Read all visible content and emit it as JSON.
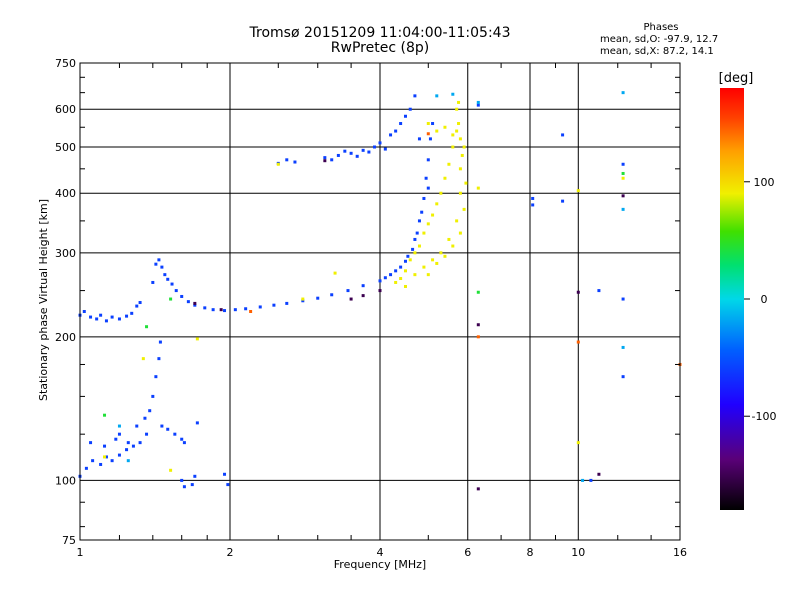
{
  "header": {
    "title": "Tromsø 20151209 11:04:00-11:05:43",
    "subtitle": "RwPretec (8p)"
  },
  "phase_stats": {
    "heading": "Phases",
    "o_line": "mean, sd,O: -97.9, 12.7",
    "x_line": "mean, sd,X: 87.2, 14.1"
  },
  "colorbar": {
    "label": "[deg]",
    "range": [
      -180,
      180
    ],
    "ticks": [
      {
        "value": 100,
        "label": "100"
      },
      {
        "value": 0,
        "label": "0"
      },
      {
        "value": -100,
        "label": "-100"
      }
    ]
  },
  "chart_data": {
    "type": "scatter",
    "xlabel": "Frequency [MHz]",
    "ylabel": "Stationary phase Virtual Height [km]",
    "xscale": "log",
    "yscale": "log",
    "xlim": [
      1,
      16
    ],
    "ylim": [
      75,
      750
    ],
    "xticks": [
      {
        "v": 1,
        "label": "1"
      },
      {
        "v": 2,
        "label": "2"
      },
      {
        "v": 4,
        "label": "4"
      },
      {
        "v": 6,
        "label": "6"
      },
      {
        "v": 8,
        "label": "8"
      },
      {
        "v": 10,
        "label": "10"
      },
      {
        "v": 16,
        "label": "16"
      }
    ],
    "yticks": [
      {
        "v": 75,
        "label": "75"
      },
      {
        "v": 100,
        "label": "100"
      },
      {
        "v": 200,
        "label": "200"
      },
      {
        "v": 300,
        "label": "300"
      },
      {
        "v": 400,
        "label": "400"
      },
      {
        "v": 500,
        "label": "500"
      },
      {
        "v": 600,
        "label": "600"
      },
      {
        "v": 750,
        "label": "750"
      }
    ],
    "grid": true,
    "series": [
      {
        "color_phase": -100,
        "points": [
          [
            1.0,
            222
          ],
          [
            1.02,
            226
          ],
          [
            1.05,
            220
          ],
          [
            1.08,
            218
          ],
          [
            1.1,
            222
          ],
          [
            1.13,
            216
          ],
          [
            1.16,
            220
          ],
          [
            1.2,
            218
          ],
          [
            1.24,
            221
          ],
          [
            1.27,
            224
          ],
          [
            1.3,
            232
          ],
          [
            1.32,
            236
          ],
          [
            1.4,
            260
          ],
          [
            1.42,
            284
          ],
          [
            1.44,
            290
          ],
          [
            1.46,
            280
          ],
          [
            1.48,
            270
          ],
          [
            1.5,
            264
          ],
          [
            1.53,
            258
          ],
          [
            1.56,
            250
          ],
          [
            1.6,
            243
          ],
          [
            1.65,
            237
          ],
          [
            1.7,
            233
          ],
          [
            1.78,
            230
          ],
          [
            1.85,
            228
          ],
          [
            1.95,
            227
          ],
          [
            2.05,
            228
          ],
          [
            2.15,
            229
          ],
          [
            2.3,
            231
          ],
          [
            2.45,
            233
          ],
          [
            2.6,
            235
          ],
          [
            2.8,
            238
          ],
          [
            3.0,
            241
          ],
          [
            3.2,
            245
          ],
          [
            3.45,
            250
          ],
          [
            3.7,
            256
          ],
          [
            4.0,
            262
          ],
          [
            4.2,
            270
          ],
          [
            4.4,
            280
          ],
          [
            4.55,
            295
          ],
          [
            4.7,
            320
          ],
          [
            4.8,
            350
          ],
          [
            4.9,
            390
          ],
          [
            4.95,
            430
          ],
          [
            5.0,
            470
          ],
          [
            5.05,
            520
          ],
          [
            5.1,
            560
          ],
          [
            4.1,
            266
          ],
          [
            4.3,
            275
          ],
          [
            4.5,
            288
          ],
          [
            4.65,
            305
          ],
          [
            4.75,
            330
          ],
          [
            4.85,
            365
          ],
          [
            5.0,
            410
          ],
          [
            2.5,
            462
          ],
          [
            2.6,
            470
          ],
          [
            2.7,
            465
          ],
          [
            3.1,
            475
          ],
          [
            3.2,
            470
          ],
          [
            3.3,
            480
          ],
          [
            3.5,
            485
          ],
          [
            3.7,
            492
          ],
          [
            3.9,
            500
          ],
          [
            4.0,
            510
          ],
          [
            4.2,
            530
          ],
          [
            4.4,
            560
          ],
          [
            4.6,
            600
          ],
          [
            4.7,
            640
          ],
          [
            3.4,
            490
          ],
          [
            3.6,
            478
          ],
          [
            3.8,
            488
          ],
          [
            4.1,
            495
          ],
          [
            4.3,
            540
          ],
          [
            4.5,
            580
          ],
          [
            4.8,
            520
          ],
          [
            1.0,
            102
          ],
          [
            1.03,
            106
          ],
          [
            1.06,
            110
          ],
          [
            1.1,
            108
          ],
          [
            1.13,
            112
          ],
          [
            1.16,
            110
          ],
          [
            1.2,
            113
          ],
          [
            1.24,
            116
          ],
          [
            1.28,
            118
          ],
          [
            1.32,
            120
          ],
          [
            1.36,
            125
          ],
          [
            1.38,
            140
          ],
          [
            1.4,
            150
          ],
          [
            1.42,
            165
          ],
          [
            1.44,
            180
          ],
          [
            1.45,
            195
          ],
          [
            1.46,
            130
          ],
          [
            1.5,
            128
          ],
          [
            1.55,
            125
          ],
          [
            1.6,
            122
          ],
          [
            1.62,
            120
          ],
          [
            1.05,
            120
          ],
          [
            1.12,
            118
          ],
          [
            1.2,
            125
          ],
          [
            1.3,
            130
          ],
          [
            1.35,
            135
          ],
          [
            1.25,
            120
          ],
          [
            1.18,
            122
          ],
          [
            1.6,
            100
          ],
          [
            1.62,
            97
          ],
          [
            1.68,
            98
          ],
          [
            1.7,
            102
          ],
          [
            1.98,
            98
          ],
          [
            1.95,
            103
          ],
          [
            1.72,
            132
          ],
          [
            6.3,
            612
          ],
          [
            9.3,
            530
          ],
          [
            8.1,
            378
          ],
          [
            8.1,
            390
          ],
          [
            9.3,
            385
          ],
          [
            10.6,
            100
          ],
          [
            12.3,
            240
          ],
          [
            12.3,
            165
          ],
          [
            12.3,
            460
          ],
          [
            11.0,
            250
          ]
        ]
      },
      {
        "color_phase": 90,
        "points": [
          [
            4.3,
            260
          ],
          [
            4.4,
            265
          ],
          [
            4.5,
            275
          ],
          [
            4.6,
            290
          ],
          [
            4.7,
            300
          ],
          [
            4.8,
            310
          ],
          [
            4.9,
            330
          ],
          [
            5.0,
            345
          ],
          [
            5.1,
            360
          ],
          [
            5.2,
            380
          ],
          [
            5.3,
            400
          ],
          [
            5.4,
            430
          ],
          [
            5.5,
            460
          ],
          [
            5.6,
            500
          ],
          [
            5.7,
            540
          ],
          [
            4.5,
            255
          ],
          [
            4.7,
            270
          ],
          [
            4.9,
            280
          ],
          [
            5.1,
            290
          ],
          [
            5.3,
            300
          ],
          [
            5.5,
            320
          ],
          [
            5.7,
            350
          ],
          [
            5.8,
            400
          ],
          [
            5.8,
            450
          ],
          [
            5.85,
            480
          ],
          [
            5.8,
            520
          ],
          [
            5.75,
            560
          ],
          [
            5.7,
            600
          ],
          [
            5.75,
            620
          ],
          [
            5.0,
            270
          ],
          [
            5.2,
            285
          ],
          [
            5.4,
            295
          ],
          [
            5.6,
            310
          ],
          [
            5.8,
            330
          ],
          [
            5.9,
            370
          ],
          [
            5.95,
            420
          ],
          [
            5.9,
            500
          ],
          [
            5.6,
            530
          ],
          [
            5.4,
            550
          ],
          [
            5.2,
            540
          ],
          [
            5.0,
            560
          ],
          [
            2.5,
            460
          ],
          [
            3.25,
            272
          ],
          [
            2.8,
            240
          ],
          [
            1.72,
            198
          ],
          [
            1.34,
            180
          ],
          [
            1.52,
            105
          ],
          [
            1.12,
            112
          ],
          [
            10.0,
            405
          ],
          [
            10.0,
            120
          ],
          [
            12.3,
            430
          ],
          [
            6.3,
            410
          ]
        ]
      },
      {
        "color_phase": -60,
        "points": [
          [
            5.2,
            640
          ],
          [
            5.6,
            645
          ],
          [
            6.3,
            620
          ],
          [
            10.2,
            100
          ],
          [
            12.3,
            190
          ],
          [
            12.3,
            370
          ],
          [
            12.3,
            650
          ],
          [
            1.2,
            130
          ],
          [
            1.25,
            110
          ]
        ]
      },
      {
        "color_phase": 20,
        "points": [
          [
            1.12,
            137
          ],
          [
            1.36,
            210
          ],
          [
            1.52,
            240
          ],
          [
            12.3,
            440
          ],
          [
            6.3,
            248
          ]
        ]
      },
      {
        "color_phase": -160,
        "points": [
          [
            3.1,
            468
          ],
          [
            3.5,
            240
          ],
          [
            3.7,
            244
          ],
          [
            4.0,
            250
          ],
          [
            1.7,
            235
          ],
          [
            1.92,
            228
          ],
          [
            6.3,
            212
          ],
          [
            6.3,
            96
          ],
          [
            11.0,
            103
          ],
          [
            12.3,
            395
          ],
          [
            10.0,
            248
          ]
        ]
      },
      {
        "color_phase": 150,
        "points": [
          [
            6.3,
            200
          ],
          [
            5.0,
            533
          ],
          [
            2.2,
            226
          ],
          [
            10.0,
            195
          ],
          [
            16.0,
            175
          ]
        ]
      }
    ]
  }
}
